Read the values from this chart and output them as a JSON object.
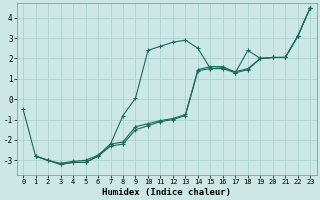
{
  "xlabel": "Humidex (Indice chaleur)",
  "bg_color": "#cce8e4",
  "grid_color": "#aad4d0",
  "line_color": "#1a6b5a",
  "xlim": [
    -0.5,
    23.5
  ],
  "ylim": [
    -3.7,
    4.7
  ],
  "yticks": [
    -3,
    -2,
    -1,
    0,
    1,
    2,
    3,
    4
  ],
  "xticks": [
    0,
    1,
    2,
    3,
    4,
    5,
    6,
    7,
    8,
    9,
    10,
    11,
    12,
    13,
    14,
    15,
    16,
    17,
    18,
    19,
    20,
    21,
    22,
    23
  ],
  "lines": [
    {
      "x": [
        0,
        1,
        2,
        3,
        4,
        5,
        6,
        7,
        8,
        9,
        10,
        11,
        12,
        13,
        14,
        15,
        16,
        17,
        18,
        19,
        20,
        21,
        22,
        23
      ],
      "y": [
        -0.5,
        -2.8,
        -3.0,
        -3.2,
        -3.1,
        -3.1,
        -2.8,
        -2.2,
        -0.8,
        0.05,
        2.4,
        2.6,
        2.8,
        2.9,
        2.5,
        1.5,
        1.5,
        1.3,
        2.4,
        2.0,
        2.05,
        2.05,
        3.1,
        4.5
      ]
    },
    {
      "x": [
        1,
        2,
        3,
        4,
        5,
        6,
        7,
        8,
        9,
        10,
        11,
        12,
        13,
        14,
        15,
        16,
        17,
        18,
        19,
        20,
        21,
        22,
        23
      ],
      "y": [
        -2.8,
        -3.0,
        -3.2,
        -3.1,
        -3.1,
        -2.8,
        -2.3,
        -2.2,
        -1.5,
        -1.3,
        -1.1,
        -1.0,
        -0.8,
        1.4,
        1.5,
        1.55,
        1.35,
        1.5,
        2.0,
        2.05,
        2.05,
        3.1,
        4.5
      ]
    },
    {
      "x": [
        1,
        2,
        3,
        4,
        5,
        6,
        7,
        8,
        9,
        10,
        11,
        12,
        13,
        14,
        15,
        16,
        17,
        18,
        19,
        20,
        21,
        22,
        23
      ],
      "y": [
        -2.8,
        -3.0,
        -3.15,
        -3.05,
        -3.0,
        -2.75,
        -2.2,
        -2.1,
        -1.35,
        -1.2,
        -1.05,
        -0.95,
        -0.75,
        1.45,
        1.6,
        1.6,
        1.3,
        1.45,
        2.0,
        2.05,
        2.05,
        3.1,
        4.5
      ]
    }
  ]
}
